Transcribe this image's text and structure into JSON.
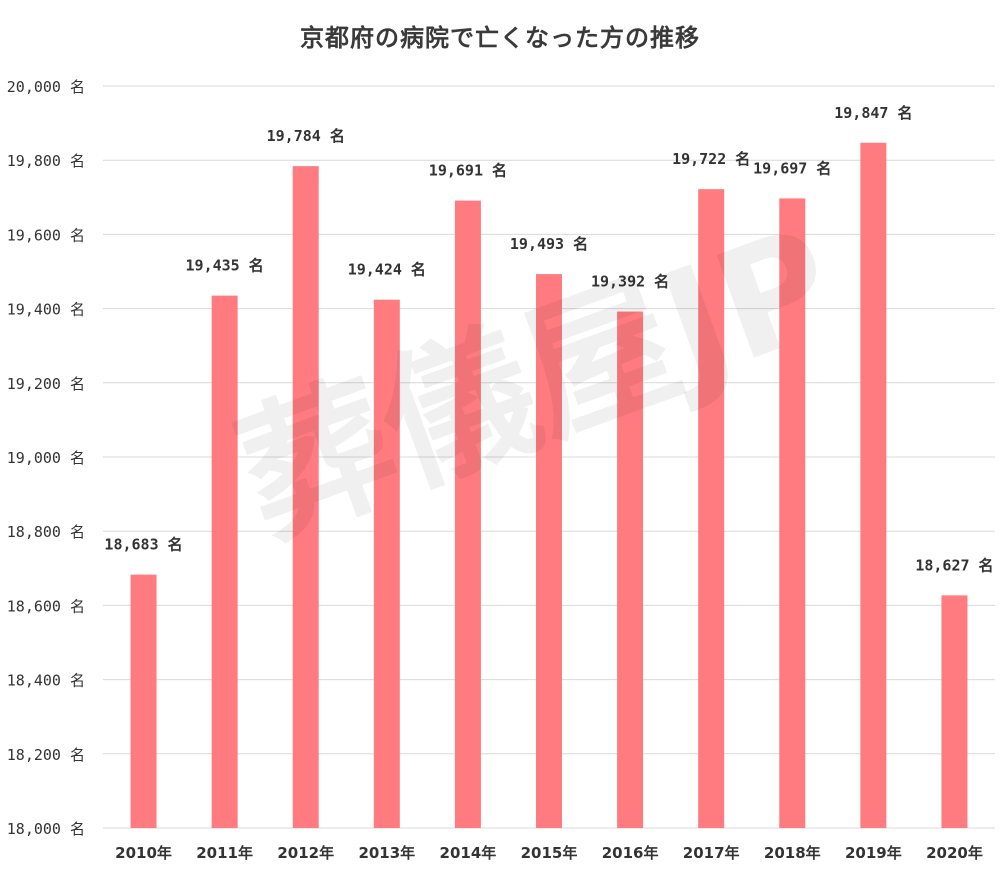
{
  "chart_data": {
    "type": "bar",
    "title": "京都府の病院で亡くなった方の推移",
    "categories": [
      "2010年",
      "2011年",
      "2012年",
      "2013年",
      "2014年",
      "2015年",
      "2016年",
      "2017年",
      "2018年",
      "2019年",
      "2020年"
    ],
    "values": [
      18683,
      19435,
      19784,
      19424,
      19691,
      19493,
      19392,
      19722,
      19697,
      19847,
      18627
    ],
    "data_labels": [
      "18,683 名",
      "19,435 名",
      "19,784 名",
      "19,424 名",
      "19,691 名",
      "19,493 名",
      "19,392 名",
      "19,722 名",
      "19,697 名",
      "19,847 名",
      "18,627 名"
    ],
    "ylim": [
      18000,
      20000
    ],
    "yticks": [
      18000,
      18200,
      18400,
      18600,
      18800,
      19000,
      19200,
      19400,
      19600,
      19800,
      20000
    ],
    "ytick_labels": [
      "18,000 名",
      "18,200 名",
      "18,400 名",
      "18,600 名",
      "18,800 名",
      "19,000 名",
      "19,200 名",
      "19,400 名",
      "19,600 名",
      "19,800 名",
      "20,000 名"
    ],
    "xlabel": "",
    "ylabel": "",
    "grid": true,
    "bar_color": "#ff7b80",
    "grid_color": "#d9d9d9",
    "watermark": "葬儀屋JP"
  }
}
